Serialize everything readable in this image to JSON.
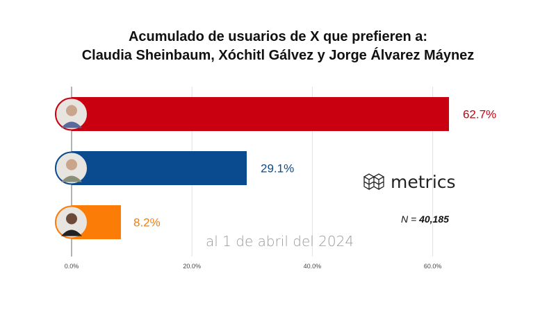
{
  "chart_data": {
    "type": "bar",
    "orientation": "horizontal",
    "title": [
      "Acumulado de usuarios de X que prefieren a:",
      "Claudia Sheinbaum, Xóchitl Gálvez y Jorge Álvarez Máynez"
    ],
    "categories": [
      "Claudia Sheinbaum",
      "Xóchitl Gálvez",
      "Jorge Álvarez Máynez"
    ],
    "values": [
      62.7,
      29.1,
      8.2
    ],
    "value_labels": [
      "62.7%",
      "29.1%",
      "8.2%"
    ],
    "colors": [
      "#c8000f",
      "#0a4a8e",
      "#fb7d07"
    ],
    "xlim": [
      0,
      62
    ],
    "xticks": [
      0,
      20,
      40,
      60
    ],
    "xtick_labels": [
      "0.0%",
      "20.0%",
      "40.0%",
      "60.0%"
    ],
    "grid": true,
    "annotation": "al 1 de abril del 2024",
    "sample_label": "N =",
    "sample_value": "40,185",
    "logo_text": "metrics"
  }
}
